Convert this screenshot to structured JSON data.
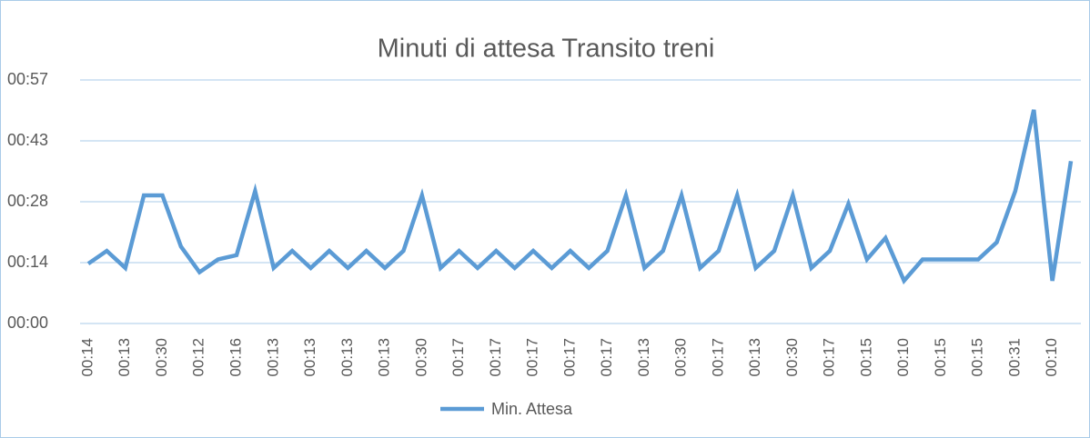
{
  "chart_data": {
    "type": "line",
    "title": "Minuti di attesa Transito treni",
    "categories": [
      "00:14",
      null,
      "00:13",
      null,
      "00:30",
      null,
      "00:12",
      null,
      "00:16",
      null,
      "00:13",
      null,
      "00:13",
      null,
      "00:13",
      null,
      "00:13",
      null,
      "00:30",
      null,
      "00:17",
      null,
      "00:17",
      null,
      "00:17",
      null,
      "00:17",
      null,
      "00:17",
      null,
      "00:13",
      null,
      "00:30",
      null,
      "00:17",
      null,
      "00:13",
      null,
      "00:30",
      null,
      "00:17",
      null,
      "00:15",
      null,
      "00:10",
      null,
      "00:15",
      null,
      "00:15",
      null,
      "00:31",
      null,
      "00:10",
      null
    ],
    "series": [
      {
        "name": "Min. Attesa",
        "color": "#5b9bd5",
        "values": [
          14,
          17,
          13,
          30,
          30,
          18,
          12,
          15,
          16,
          31,
          13,
          17,
          13,
          17,
          13,
          17,
          13,
          17,
          30,
          13,
          17,
          13,
          17,
          13,
          17,
          13,
          17,
          13,
          17,
          30,
          13,
          17,
          30,
          13,
          17,
          30,
          13,
          17,
          30,
          13,
          17,
          28,
          15,
          20,
          10,
          15,
          15,
          15,
          15,
          19,
          31,
          50,
          10,
          38
        ]
      }
    ],
    "ylim": [
      0,
      57
    ],
    "yticks": [
      {
        "value": 0,
        "label": "00:00"
      },
      {
        "value": 14.25,
        "label": "00:14"
      },
      {
        "value": 28.5,
        "label": "00:28"
      },
      {
        "value": 42.75,
        "label": "00:43"
      },
      {
        "value": 57,
        "label": "00:57"
      }
    ],
    "grid": true,
    "legend": "bottom"
  }
}
